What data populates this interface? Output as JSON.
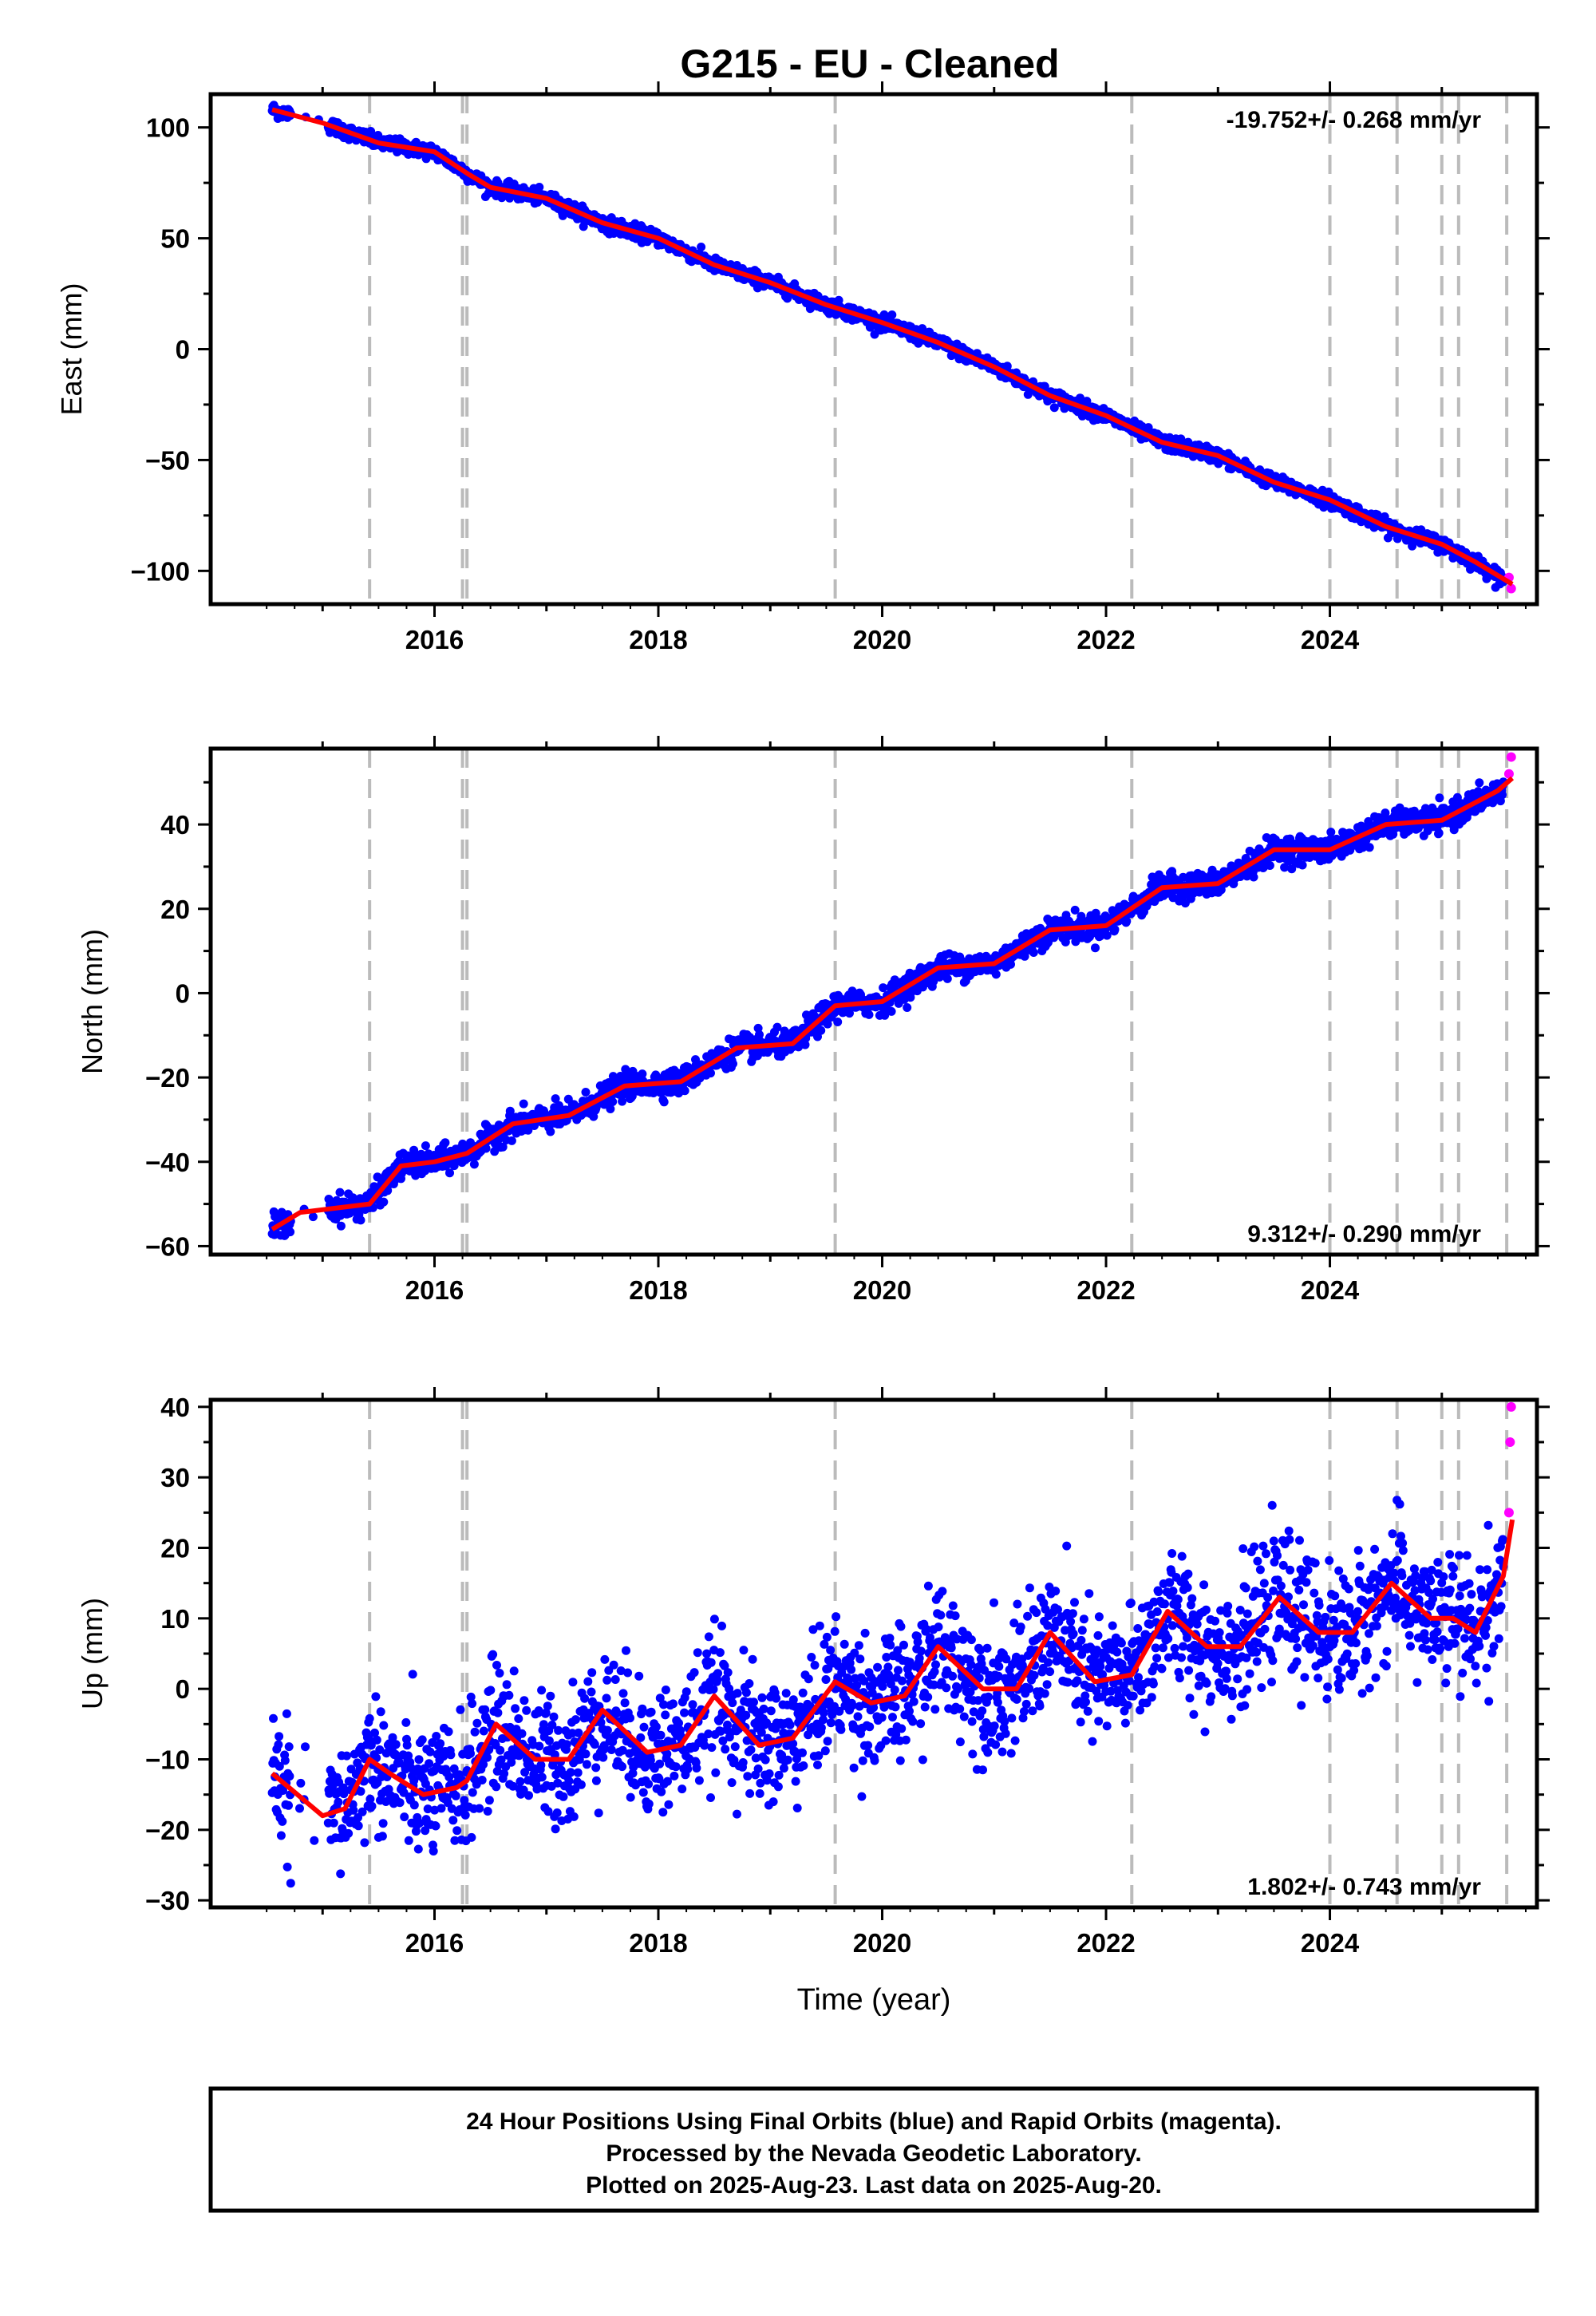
{
  "title": "G215  - EU - Cleaned",
  "colors": {
    "final": "#0000ff",
    "rapid": "#ff00ff",
    "model": "#ff0000",
    "event_line": "#bbbbbb",
    "frame": "#000000"
  },
  "footer": {
    "line1": "24 Hour Positions Using Final Orbits (blue) and Rapid Orbits (magenta).",
    "line2": "Processed by the Nevada Geodetic Laboratory.",
    "line3": "Plotted on 2025-Aug-23. Last data on 2025-Aug-20."
  },
  "chart_data": [
    {
      "type": "scatter",
      "name": "east",
      "ylabel": "East (mm)",
      "xlabel": "",
      "xlim": [
        2014.0,
        2025.85
      ],
      "ylim": [
        -115,
        115
      ],
      "x_ticks": [
        2016,
        2018,
        2020,
        2022,
        2024
      ],
      "x_tick_labels": [
        "2016",
        "2018",
        "2020",
        "2022",
        "2024"
      ],
      "y_ticks": [
        100,
        50,
        0,
        -50,
        -100
      ],
      "y_tick_labels": [
        "100",
        "50",
        "0",
        "−50",
        "−100"
      ],
      "rate_text": "-19.752+/- 0.268 mm/yr",
      "rate_position": "top-right",
      "event_lines": [
        2015.42,
        2016.25,
        2016.29,
        2019.58,
        2022.23,
        2024.0,
        2024.6,
        2025.0,
        2025.15,
        2025.58
      ],
      "final_start": 2014.55,
      "final_end": 2025.55,
      "rapid_end": 2025.63,
      "model": {
        "x": [
          2014.55,
          2015.0,
          2015.5,
          2016.0,
          2016.3,
          2016.5,
          2017.0,
          2017.5,
          2018.0,
          2018.5,
          2019.0,
          2019.5,
          2020.0,
          2020.5,
          2021.0,
          2021.5,
          2022.0,
          2022.5,
          2023.0,
          2023.5,
          2024.0,
          2024.5,
          2025.0,
          2025.3,
          2025.63
        ],
        "y": [
          108,
          102,
          93,
          89,
          79,
          73,
          68,
          57,
          50,
          38,
          30,
          20,
          12,
          3,
          -8,
          -21,
          -30,
          -42,
          -48,
          -60,
          -68,
          -80,
          -88,
          -96,
          -106
        ]
      },
      "final_points": [
        [
          2014.55,
          108
        ],
        [
          2015.5,
          94
        ],
        [
          2016.3,
          79
        ],
        [
          2017.5,
          57
        ],
        [
          2018.5,
          38
        ],
        [
          2019.5,
          20
        ],
        [
          2020.5,
          3
        ],
        [
          2021.5,
          -21
        ],
        [
          2022.5,
          -42
        ],
        [
          2023.5,
          -60
        ],
        [
          2024.5,
          -80
        ],
        [
          2025.5,
          -102
        ]
      ],
      "rapid_points": [
        [
          2025.6,
          -103
        ],
        [
          2025.62,
          -108
        ]
      ],
      "noise_mm": 1.6,
      "seasonal_mm": 0.0
    },
    {
      "type": "scatter",
      "name": "north",
      "ylabel": "North (mm)",
      "xlabel": "",
      "xlim": [
        2014.0,
        2025.85
      ],
      "ylim": [
        -62,
        58
      ],
      "x_ticks": [
        2016,
        2018,
        2020,
        2022,
        2024
      ],
      "x_tick_labels": [
        "2016",
        "2018",
        "2020",
        "2022",
        "2024"
      ],
      "y_ticks": [
        40,
        20,
        0,
        -20,
        -40,
        -60
      ],
      "y_tick_labels": [
        "40",
        "20",
        "0",
        "−20",
        "−40",
        "−60"
      ],
      "rate_text": "9.312+/- 0.290 mm/yr",
      "rate_position": "bottom-right",
      "event_lines": [
        2015.42,
        2016.25,
        2016.29,
        2019.58,
        2022.23,
        2024.0,
        2024.6,
        2025.0,
        2025.15,
        2025.58
      ],
      "final_start": 2014.55,
      "final_end": 2025.55,
      "rapid_end": 2025.63,
      "model": {
        "x": [
          2014.55,
          2014.8,
          2015.42,
          2015.7,
          2016.0,
          2016.29,
          2016.7,
          2017.2,
          2017.7,
          2018.2,
          2018.7,
          2019.2,
          2019.58,
          2020.0,
          2020.5,
          2021.0,
          2021.5,
          2022.0,
          2022.5,
          2023.0,
          2023.5,
          2024.0,
          2024.5,
          2025.0,
          2025.5,
          2025.63
        ],
        "y": [
          -56,
          -52,
          -50,
          -41,
          -40,
          -38,
          -31,
          -29,
          -22,
          -21,
          -13,
          -12,
          -3,
          -2,
          6,
          7,
          15,
          16,
          25,
          26,
          34,
          34,
          40,
          41,
          48,
          51
        ]
      },
      "final_points": [
        [
          2014.55,
          -56
        ],
        [
          2015.42,
          -50
        ],
        [
          2016.29,
          -38
        ],
        [
          2017.2,
          -29
        ],
        [
          2018.2,
          -21
        ],
        [
          2019.2,
          -12
        ],
        [
          2020.0,
          -2
        ],
        [
          2021.0,
          7
        ],
        [
          2022.0,
          16
        ],
        [
          2023.0,
          26
        ],
        [
          2024.0,
          34
        ],
        [
          2025.0,
          41
        ],
        [
          2025.5,
          48
        ]
      ],
      "rapid_points": [
        [
          2025.6,
          52
        ],
        [
          2025.62,
          56
        ]
      ],
      "noise_mm": 1.5,
      "seasonal_mm": 0.0
    },
    {
      "type": "scatter",
      "name": "up",
      "ylabel": "Up (mm)",
      "xlabel": "Time (year)",
      "xlim": [
        2014.0,
        2025.85
      ],
      "ylim": [
        -31,
        41
      ],
      "x_ticks": [
        2016,
        2018,
        2020,
        2022,
        2024
      ],
      "x_tick_labels": [
        "2016",
        "2018",
        "2020",
        "2022",
        "2024"
      ],
      "y_ticks": [
        40,
        30,
        20,
        10,
        0,
        -10,
        -20,
        -30
      ],
      "y_tick_labels": [
        "40",
        "30",
        "20",
        "10",
        "0",
        "−10",
        "−20",
        "−30"
      ],
      "rate_text": "1.802+/- 0.743 mm/yr",
      "rate_position": "bottom-right",
      "event_lines": [
        2015.42,
        2016.25,
        2016.29,
        2019.58,
        2022.23,
        2024.0,
        2024.6,
        2025.0,
        2025.15,
        2025.58
      ],
      "final_start": 2014.55,
      "final_end": 2025.55,
      "rapid_end": 2025.63,
      "model": {
        "x": [
          2014.55,
          2014.7,
          2015.0,
          2015.2,
          2015.42,
          2015.6,
          2015.9,
          2016.2,
          2016.29,
          2016.55,
          2016.9,
          2017.2,
          2017.5,
          2017.9,
          2018.2,
          2018.5,
          2018.9,
          2019.2,
          2019.58,
          2019.9,
          2020.2,
          2020.5,
          2020.9,
          2021.2,
          2021.5,
          2021.9,
          2022.23,
          2022.55,
          2022.9,
          2023.2,
          2023.55,
          2023.9,
          2024.2,
          2024.55,
          2024.9,
          2025.1,
          2025.3,
          2025.55,
          2025.63
        ],
        "y": [
          -12,
          -14,
          -18,
          -17,
          -10,
          -12,
          -15,
          -14,
          -13,
          -5,
          -10,
          -10,
          -3,
          -9,
          -8,
          -1,
          -8,
          -7,
          1,
          -2,
          -1,
          6,
          0,
          0,
          8,
          1,
          2,
          11,
          6,
          6,
          13,
          8,
          8,
          15,
          10,
          10,
          8,
          16,
          24
        ]
      },
      "final_points": [
        [
          2014.55,
          -12
        ],
        [
          2015.0,
          -18
        ],
        [
          2015.42,
          -10
        ],
        [
          2016.29,
          -13
        ],
        [
          2016.55,
          -5
        ],
        [
          2017.5,
          -3
        ],
        [
          2018.5,
          -1
        ],
        [
          2019.58,
          1
        ],
        [
          2020.5,
          6
        ],
        [
          2021.5,
          8
        ],
        [
          2022.55,
          11
        ],
        [
          2023.55,
          13
        ],
        [
          2024.55,
          15
        ],
        [
          2025.55,
          16
        ]
      ],
      "rapid_points": [
        [
          2025.6,
          25
        ],
        [
          2025.61,
          35
        ],
        [
          2025.62,
          40
        ]
      ],
      "noise_mm": 4.5,
      "seasonal_mm": 0.0
    }
  ]
}
